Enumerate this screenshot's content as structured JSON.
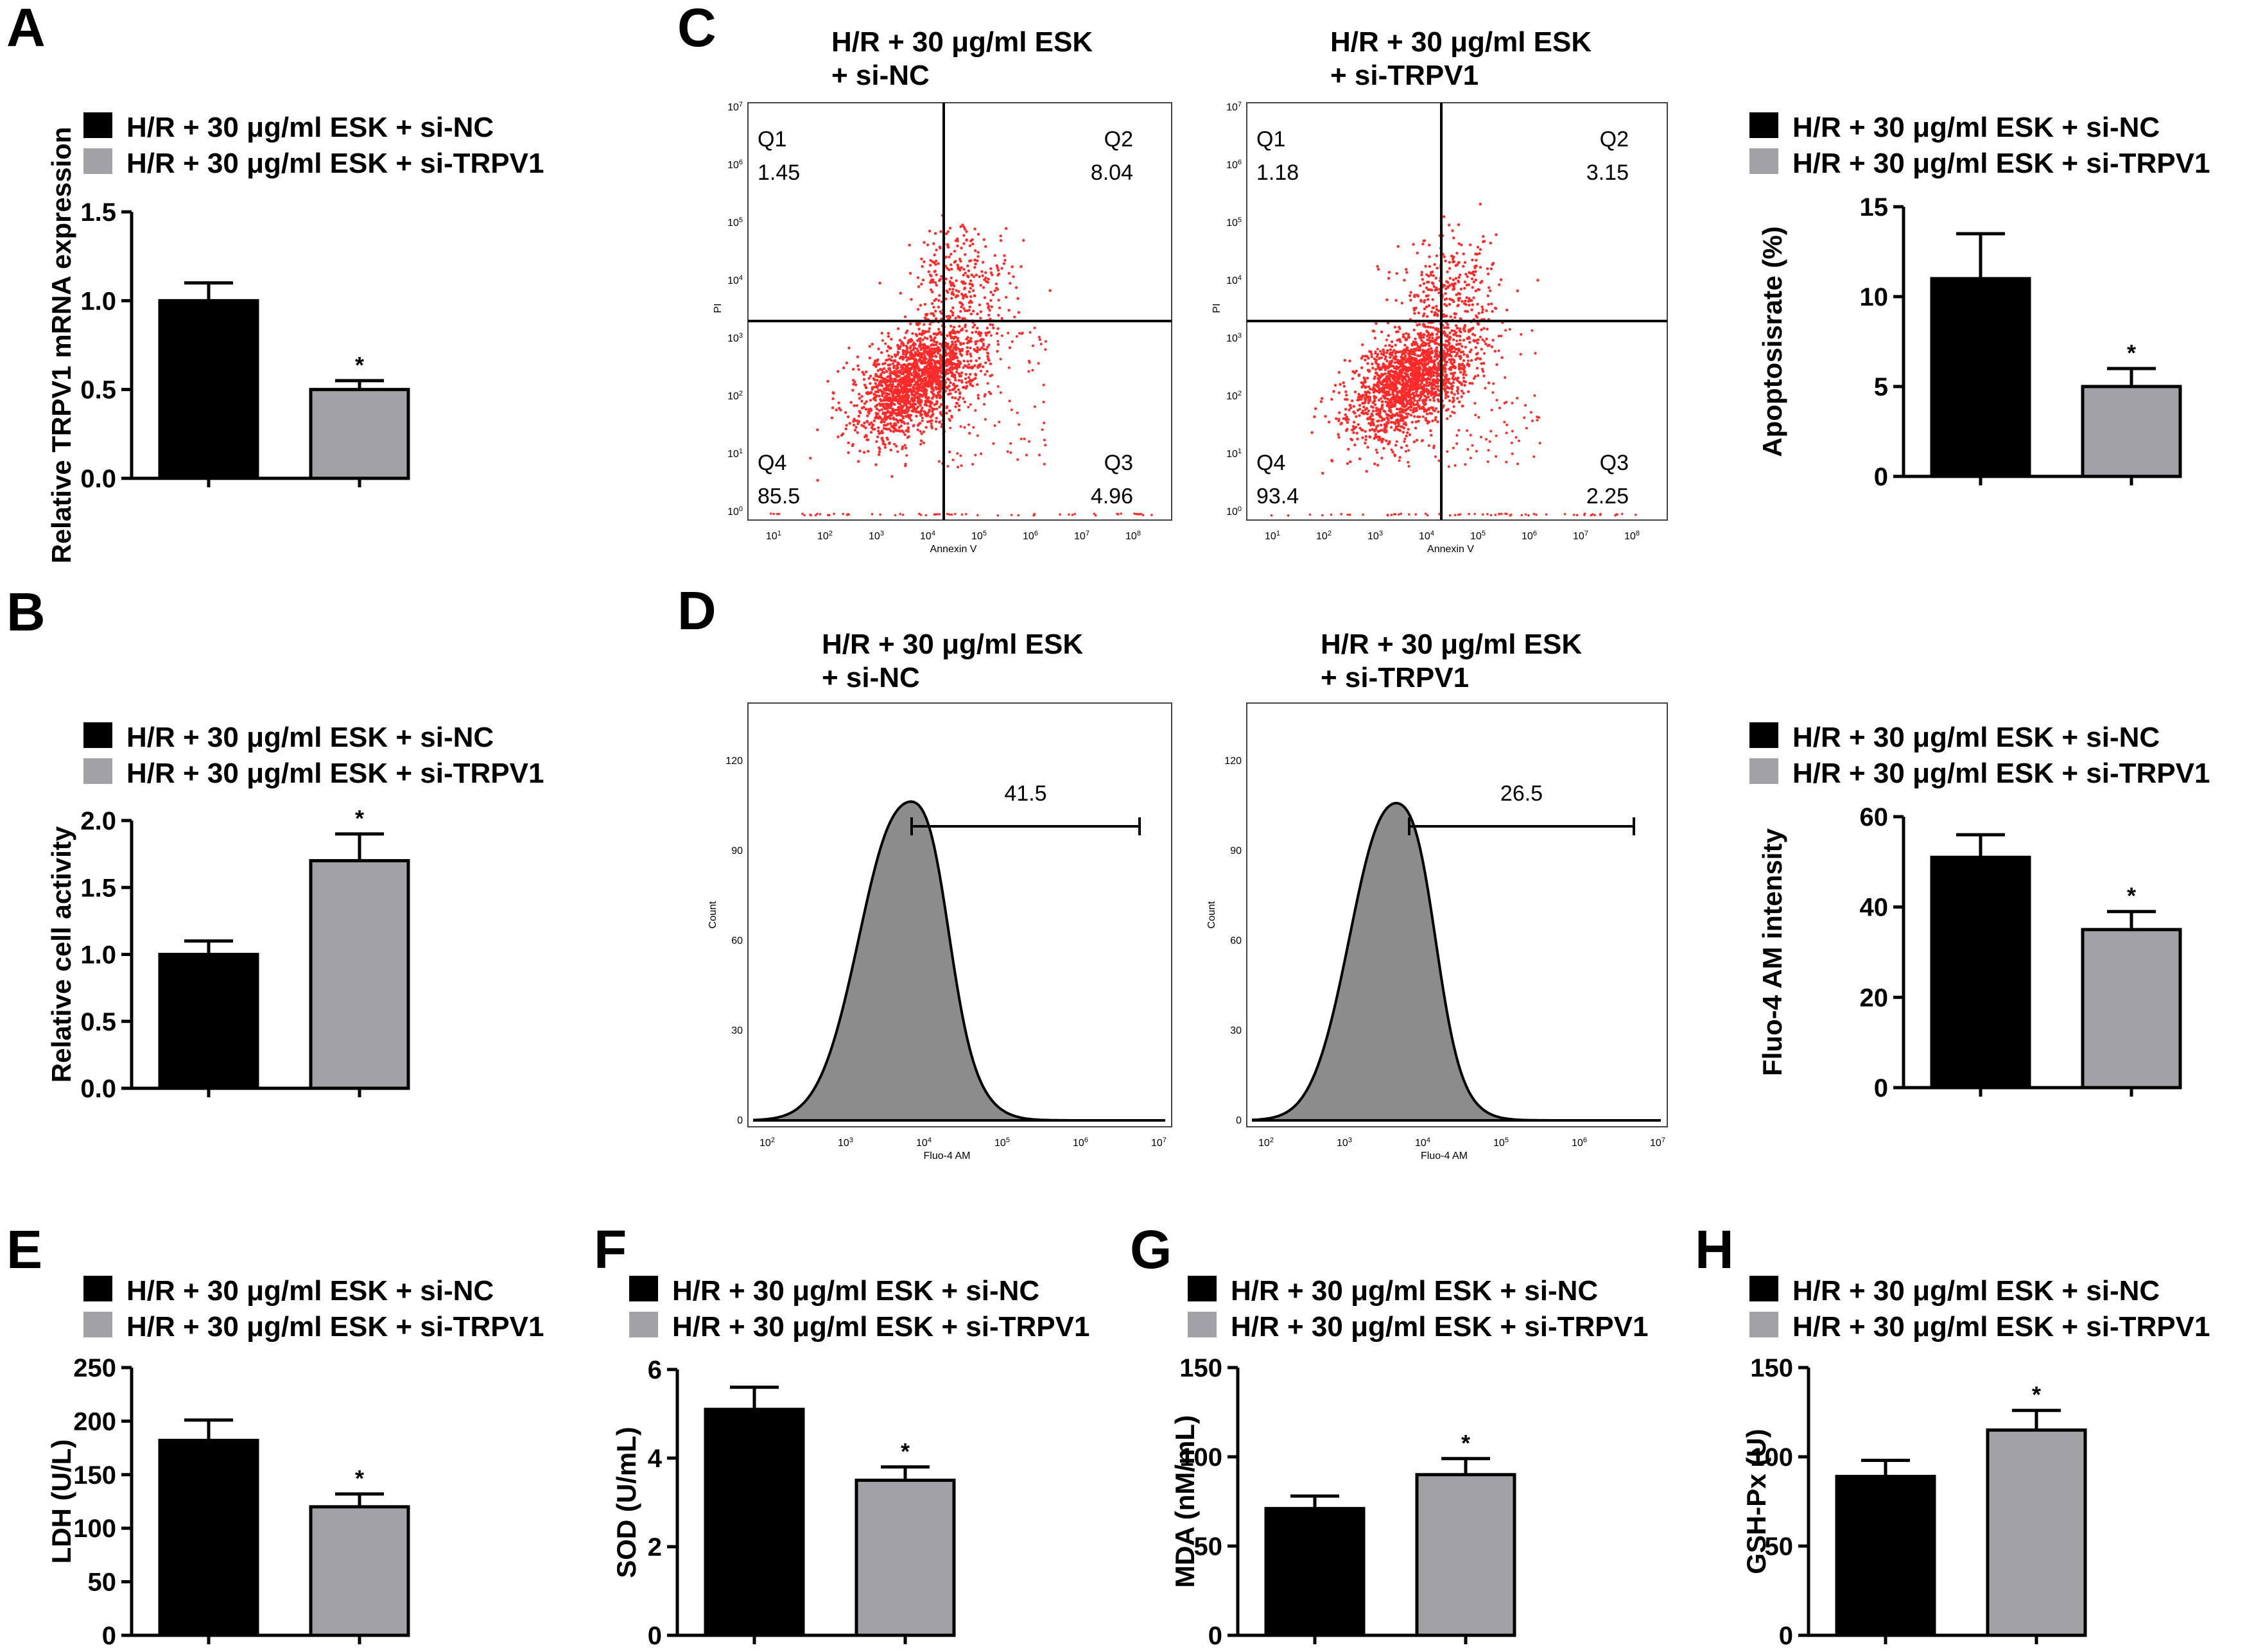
{
  "colors": {
    "si_nc": "#000000",
    "si_trpv1": "#a2a2a6",
    "dots": "#ff2a2a",
    "hist_fill": "#8c8c8c"
  },
  "legend": {
    "nc": "H/R + 30 μg/ml ESK + si-NC",
    "trpv1": "H/R + 30 μg/ml ESK + si-TRPV1"
  },
  "chart_data": [
    {
      "id": "A",
      "type": "bar",
      "panel_label": "A",
      "ylabel": "Relative TRPV1 mRNA expression",
      "ylim": [
        0,
        1.5
      ],
      "ticks": [
        "0.0",
        "0.5",
        "1.0",
        "1.5"
      ],
      "categories": [
        "H/R + 30 μg/ml ESK + si-NC",
        "H/R + 30 μg/ml ESK + si-TRPV1"
      ],
      "values": [
        1.0,
        0.5
      ],
      "errors": [
        0.1,
        0.05
      ],
      "annotation": "*"
    },
    {
      "id": "B",
      "type": "bar",
      "panel_label": "B",
      "ylabel": "Relative cell activity",
      "ylim": [
        0,
        2.0
      ],
      "ticks": [
        "0.0",
        "0.5",
        "1.0",
        "1.5",
        "2.0"
      ],
      "categories": [
        "H/R + 30 μg/ml ESK + si-NC",
        "H/R + 30 μg/ml ESK + si-TRPV1"
      ],
      "values": [
        1.0,
        1.7
      ],
      "errors": [
        0.1,
        0.2
      ],
      "annotation": "*"
    },
    {
      "id": "C",
      "type": "bar",
      "ylabel": "Apoptosisrate (%)",
      "ylim": [
        0,
        15
      ],
      "ticks": [
        "0",
        "5",
        "10",
        "15"
      ],
      "categories": [
        "H/R + 30 μg/ml ESK + si-NC",
        "H/R + 30 μg/ml ESK + si-TRPV1"
      ],
      "values": [
        11.0,
        5.0
      ],
      "errors": [
        2.5,
        1.0
      ],
      "annotation": "*"
    },
    {
      "id": "D",
      "type": "bar",
      "ylabel": "Fluo-4 AM intensity",
      "ylim": [
        0,
        60
      ],
      "ticks": [
        "0",
        "20",
        "40",
        "60"
      ],
      "categories": [
        "H/R + 30 μg/ml ESK + si-NC",
        "H/R + 30 μg/ml ESK + si-TRPV1"
      ],
      "values": [
        51,
        35
      ],
      "errors": [
        5,
        4
      ],
      "annotation": "*"
    },
    {
      "id": "E",
      "type": "bar",
      "panel_label": "E",
      "ylabel": "LDH (U/L)",
      "ylim": [
        0,
        250
      ],
      "ticks": [
        "0",
        "50",
        "100",
        "150",
        "200",
        "250"
      ],
      "categories": [
        "H/R + 30 μg/ml ESK + si-NC",
        "H/R + 30 μg/ml ESK + si-TRPV1"
      ],
      "values": [
        182,
        120
      ],
      "errors": [
        19,
        12
      ],
      "annotation": "*"
    },
    {
      "id": "F",
      "type": "bar",
      "panel_label": "F",
      "ylabel": "SOD (U/mL)",
      "ylim": [
        0,
        6
      ],
      "ticks": [
        "0",
        "2",
        "4",
        "6"
      ],
      "categories": [
        "H/R + 30 μg/ml ESK + si-NC",
        "H/R + 30 μg/ml ESK + si-TRPV1"
      ],
      "values": [
        5.1,
        3.5
      ],
      "errors": [
        0.5,
        0.3
      ],
      "annotation": "*"
    },
    {
      "id": "G",
      "type": "bar",
      "panel_label": "G",
      "ylabel": "MDA (nM/mL)",
      "ylim": [
        0,
        150
      ],
      "ticks": [
        "0",
        "50",
        "100",
        "150"
      ],
      "categories": [
        "H/R + 30 μg/ml ESK + si-NC",
        "H/R + 30 μg/ml ESK + si-TRPV1"
      ],
      "values": [
        71,
        90
      ],
      "errors": [
        7,
        9
      ],
      "annotation": "*"
    },
    {
      "id": "H",
      "type": "bar",
      "panel_label": "H",
      "ylabel": "GSH-Px (U)",
      "ylim": [
        0,
        150
      ],
      "ticks": [
        "0",
        "50",
        "100",
        "150"
      ],
      "categories": [
        "H/R + 30 μg/ml ESK + si-NC",
        "H/R + 30 μg/ml ESK + si-TRPV1"
      ],
      "values": [
        89,
        115
      ],
      "errors": [
        9,
        11
      ],
      "annotation": "*"
    }
  ],
  "flow_c": {
    "panel_label": "C",
    "xlabel": "Annexin V",
    "ylabel": "PI",
    "ticks": [
      "0",
      "1",
      "2",
      "3",
      "4",
      "5",
      "6",
      "7",
      "8"
    ],
    "plots": [
      {
        "title1": "H/R + 30 μg/ml ESK",
        "title2": "+ si-NC",
        "q1": "Q1",
        "q2": "Q2",
        "q3": "Q3",
        "q4": "Q4",
        "v1": "1.45",
        "v2": "8.04",
        "v3": "4.96",
        "v4": "85.5"
      },
      {
        "title1": "H/R + 30 μg/ml ESK",
        "title2": "+ si-TRPV1",
        "q1": "Q1",
        "q2": "Q2",
        "q3": "Q3",
        "q4": "Q4",
        "v1": "1.18",
        "v2": "3.15",
        "v3": "2.25",
        "v4": "93.4"
      }
    ]
  },
  "flow_d": {
    "panel_label": "D",
    "xlabel": "Fluo-4 AM",
    "ylabel": "Count",
    "yticks": [
      "0",
      "30",
      "60",
      "90",
      "120"
    ],
    "xticks": [
      "2",
      "3",
      "4",
      "5",
      "6",
      "7"
    ],
    "plots": [
      {
        "title1": "H/R + 30 μg/ml ESK",
        "title2": "+ si-NC",
        "gate_value": "41.5"
      },
      {
        "title1": "H/R + 30 μg/ml ESK",
        "title2": "+ si-TRPV1",
        "gate_value": "26.5"
      }
    ]
  }
}
